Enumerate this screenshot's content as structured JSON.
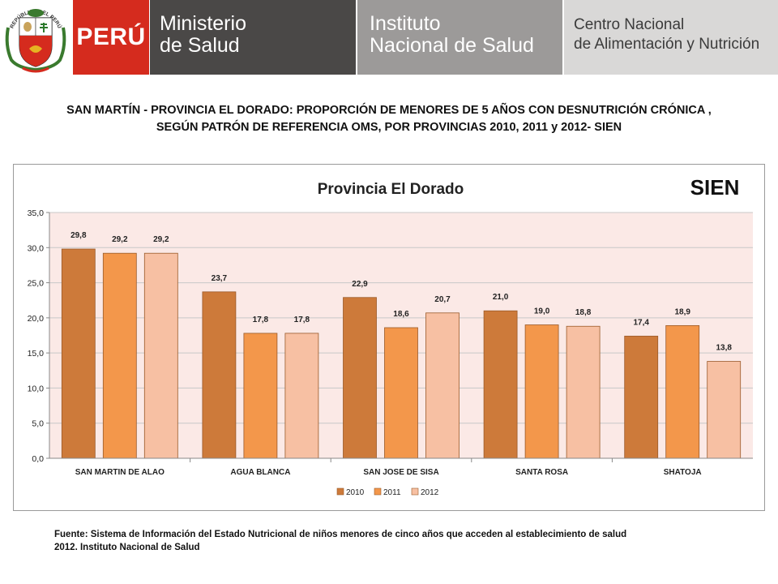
{
  "header": {
    "crest_text": "REPÚBLICA DEL PERÚ",
    "peru": "PERÚ",
    "ministry_line1": "Ministerio",
    "ministry_line2": "de Salud",
    "institute_line1": "Instituto",
    "institute_line2": "Nacional de Salud",
    "center_line1": "Centro Nacional",
    "center_line2": "de Alimentación y Nutrición"
  },
  "title_line1": "SAN MARTÍN - PROVINCIA  EL DORADO: PROPORCIÓN DE MENORES DE 5 AÑOS CON DESNUTRICIÓN CRÓNICA ,",
  "title_line2": "SEGÚN PATRÓN DE REFERENCIA OMS,  POR PROVINCIAS  2010, 2011 y 2012- SIEN",
  "source_line1": "Fuente: Sistema de Información del Estado Nutricional de niños menores de cinco años que acceden al establecimiento de salud",
  "source_line2": "2012.  Instituto Nacional de Salud",
  "colors": {
    "s2010": "#cd7a3a",
    "s2011": "#f3974b",
    "s2012": "#f7c0a3",
    "plot_bg": "#fbe9e6",
    "red": "#d52b1e"
  },
  "chart_data": {
    "type": "bar",
    "title": "Provincia El Dorado",
    "badge": "SIEN",
    "xlabel": "",
    "ylabel": "",
    "ylim": [
      0,
      35
    ],
    "yticks": [
      "0,0",
      "5,0",
      "10,0",
      "15,0",
      "20,0",
      "25,0",
      "30,0",
      "35,0"
    ],
    "categories": [
      "SAN MARTIN DE ALAO",
      "AGUA BLANCA",
      "SAN JOSE DE SISA",
      "SANTA ROSA",
      "SHATOJA"
    ],
    "series": [
      {
        "name": "2010",
        "values": [
          29.8,
          23.7,
          22.9,
          21.0,
          17.4
        ],
        "labels": [
          "29,8",
          "23,7",
          "22,9",
          "21,0",
          "17,4"
        ]
      },
      {
        "name": "2011",
        "values": [
          29.2,
          17.8,
          18.6,
          19.0,
          18.9
        ],
        "labels": [
          "29,2",
          "17,8",
          "18,6",
          "19,0",
          "18,9"
        ]
      },
      {
        "name": "2012",
        "values": [
          29.2,
          17.8,
          20.7,
          18.8,
          13.8
        ],
        "labels": [
          "29,2",
          "17,8",
          "20,7",
          "18,8",
          "13,8"
        ]
      }
    ],
    "grid": true,
    "legend_position": "bottom-center"
  }
}
